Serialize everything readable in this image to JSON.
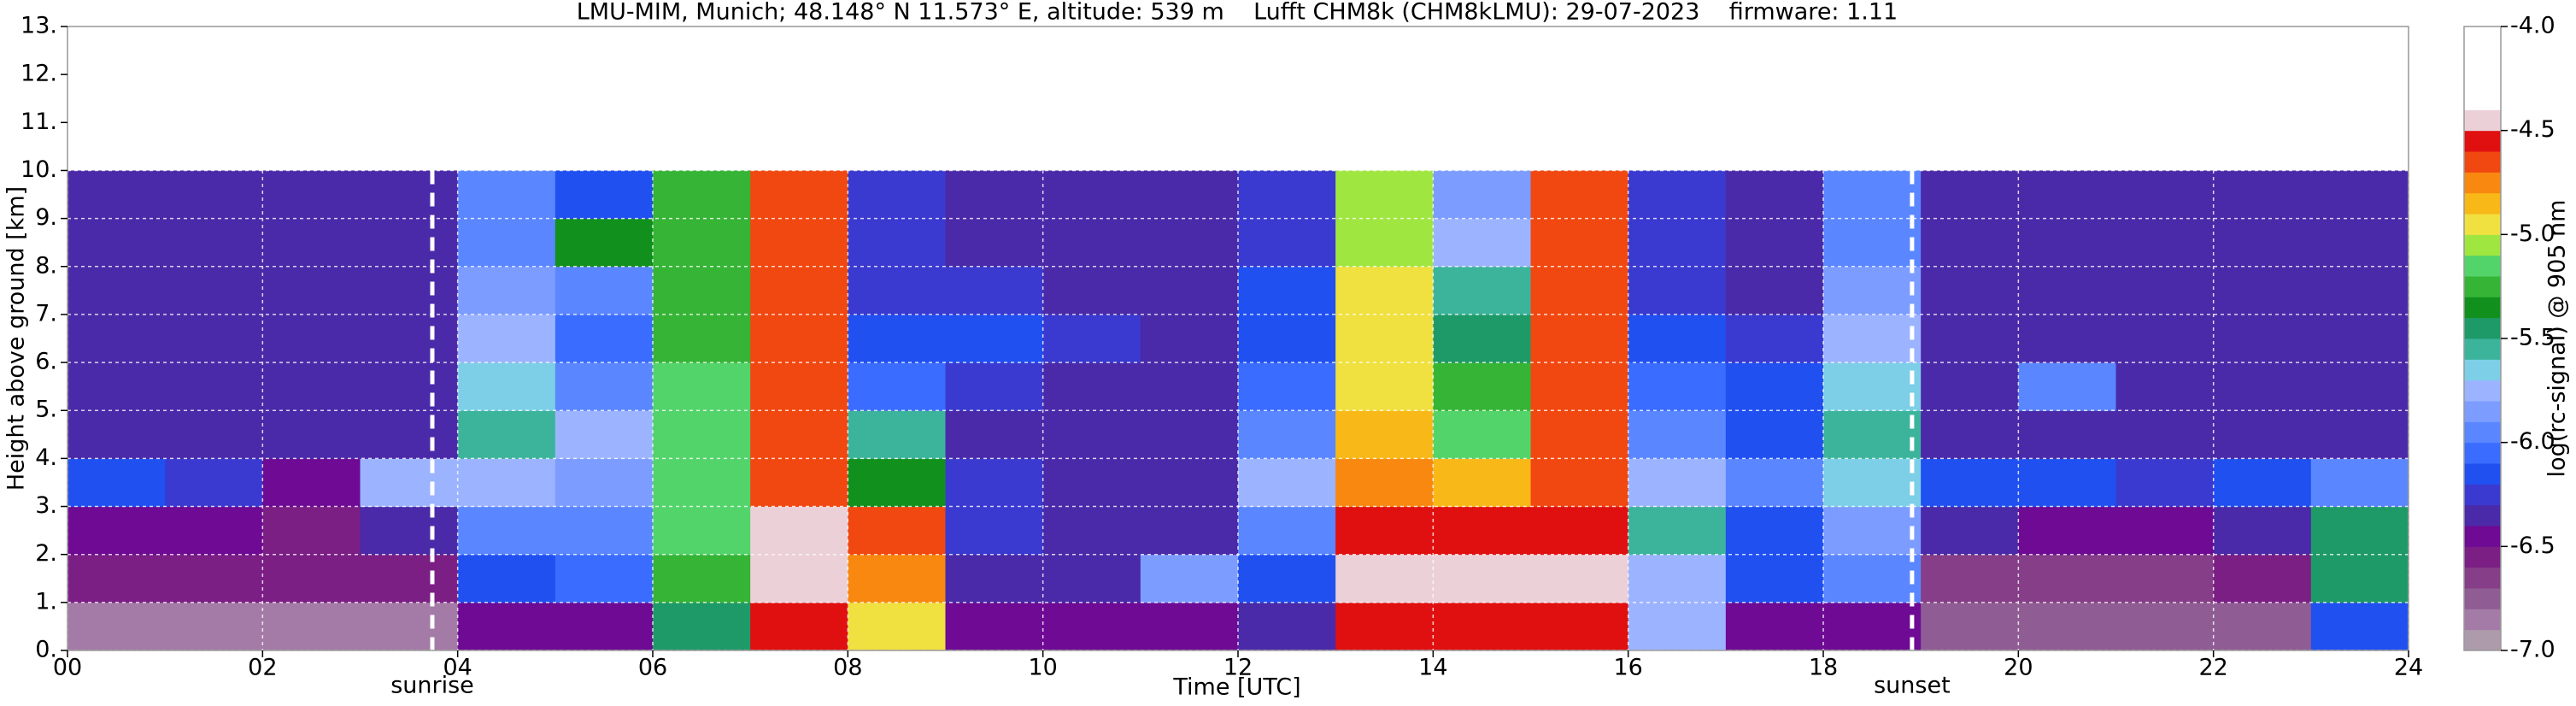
{
  "chart_data": {
    "type": "heatmap",
    "title": "LMU-MIM, Munich; 48.148° N 11.573° E, altitude: 539 m    Lufft CHM8k (CHM8kLMU): 29-07-2023    firmware: 1.11",
    "x_label": "Time [UTC]",
    "y_label": "Height above ground [km]",
    "xlim": [
      0,
      24
    ],
    "ylim": [
      0,
      13
    ],
    "xticks": [
      {
        "value": 0,
        "label": "00"
      },
      {
        "value": 2,
        "label": "02"
      },
      {
        "value": 4,
        "label": "04"
      },
      {
        "value": 6,
        "label": "06"
      },
      {
        "value": 8,
        "label": "08"
      },
      {
        "value": 10,
        "label": "10"
      },
      {
        "value": 12,
        "label": "12"
      },
      {
        "value": 14,
        "label": "14"
      },
      {
        "value": 16,
        "label": "16"
      },
      {
        "value": 18,
        "label": "18"
      },
      {
        "value": 20,
        "label": "20"
      },
      {
        "value": 22,
        "label": "22"
      },
      {
        "value": 24,
        "label": "24"
      }
    ],
    "yticks": [
      {
        "value": 0,
        "label": "0."
      },
      {
        "value": 1,
        "label": "1."
      },
      {
        "value": 2,
        "label": "2."
      },
      {
        "value": 3,
        "label": "3."
      },
      {
        "value": 4,
        "label": "4."
      },
      {
        "value": 5,
        "label": "5."
      },
      {
        "value": 6,
        "label": "6."
      },
      {
        "value": 7,
        "label": "7."
      },
      {
        "value": 8,
        "label": "8."
      },
      {
        "value": 9,
        "label": "9."
      },
      {
        "value": 10,
        "label": "10."
      },
      {
        "value": 11,
        "label": "11."
      },
      {
        "value": 12,
        "label": "12."
      },
      {
        "value": 13,
        "label": "13."
      }
    ],
    "grid": true,
    "x_bins": [
      0,
      1,
      2,
      3,
      4,
      5,
      6,
      7,
      8,
      9,
      10,
      11,
      12,
      13,
      14,
      15,
      16,
      17,
      18,
      19,
      20,
      21,
      22,
      23,
      24
    ],
    "y_bins": [
      0,
      1,
      2,
      3,
      4,
      5,
      6,
      7,
      8,
      9,
      10
    ],
    "values": [
      [
        -6.9,
        -6.9,
        -6.9,
        -6.9,
        -6.5,
        -6.5,
        -5.5,
        -4.6,
        -5.0,
        -6.5,
        -6.5,
        -6.5,
        -6.4,
        -4.6,
        -4.6,
        -4.6,
        -5.8,
        -6.5,
        -6.5,
        -6.8,
        -6.8,
        -6.8,
        -6.8,
        -6.2
      ],
      [
        -6.6,
        -6.6,
        -6.6,
        -6.6,
        -6.2,
        -6.1,
        -5.3,
        -4.5,
        -4.8,
        -6.4,
        -6.4,
        -5.9,
        -6.2,
        -4.5,
        -4.5,
        -4.5,
        -5.8,
        -6.2,
        -6.0,
        -6.7,
        -6.7,
        -6.7,
        -6.6,
        -5.5
      ],
      [
        -6.5,
        -6.5,
        -6.6,
        -6.4,
        -6.0,
        -6.0,
        -5.2,
        -4.5,
        -4.7,
        -6.3,
        -6.4,
        -6.4,
        -6.0,
        -4.6,
        -4.6,
        -4.6,
        -5.6,
        -6.2,
        -5.9,
        -6.4,
        -6.5,
        -6.5,
        -6.4,
        -5.5
      ],
      [
        -6.2,
        -6.3,
        -6.5,
        -5.8,
        -5.8,
        -5.9,
        -5.2,
        -4.7,
        -5.4,
        -6.3,
        -6.4,
        -6.4,
        -5.8,
        -4.8,
        -4.9,
        -4.7,
        -5.8,
        -6.0,
        -5.7,
        -6.2,
        -6.2,
        -6.3,
        -6.2,
        -6.0
      ],
      [
        -6.4,
        -6.4,
        -6.4,
        -6.4,
        -5.6,
        -5.8,
        -5.2,
        -4.7,
        -5.6,
        -6.4,
        -6.4,
        -6.4,
        -6.0,
        -4.9,
        -5.2,
        -4.7,
        -6.0,
        -6.2,
        -5.6,
        -6.4,
        -6.4,
        -6.4,
        -6.4,
        -6.4
      ],
      [
        -6.4,
        -6.4,
        -6.4,
        -6.4,
        -5.7,
        -6.0,
        -5.2,
        -4.7,
        -6.1,
        -6.3,
        -6.4,
        -6.4,
        -6.1,
        -5.0,
        -5.3,
        -4.7,
        -6.1,
        -6.2,
        -5.7,
        -6.4,
        -6.0,
        -6.4,
        -6.4,
        -6.4
      ],
      [
        -6.4,
        -6.4,
        -6.4,
        -6.4,
        -5.8,
        -6.1,
        -5.3,
        -4.7,
        -6.2,
        -6.2,
        -6.3,
        -6.4,
        -6.2,
        -5.0,
        -5.5,
        -4.7,
        -6.2,
        -6.3,
        -5.8,
        -6.4,
        -6.4,
        -6.4,
        -6.4,
        -6.4
      ],
      [
        -6.4,
        -6.4,
        -6.4,
        -6.4,
        -5.9,
        -6.0,
        -5.3,
        -4.7,
        -6.3,
        -6.3,
        -6.4,
        -6.4,
        -6.2,
        -5.0,
        -5.6,
        -4.7,
        -6.3,
        -6.4,
        -5.9,
        -6.4,
        -6.4,
        -6.4,
        -6.4,
        -6.4
      ],
      [
        -6.4,
        -6.4,
        -6.4,
        -6.4,
        -6.0,
        -5.4,
        -5.3,
        -4.7,
        -6.3,
        -6.4,
        -6.4,
        -6.4,
        -6.3,
        -5.1,
        -5.8,
        -4.7,
        -6.3,
        -6.4,
        -6.0,
        -6.4,
        -6.4,
        -6.4,
        -6.4,
        -6.4
      ],
      [
        -6.4,
        -6.4,
        -6.4,
        -6.4,
        -6.0,
        -6.2,
        -5.3,
        -4.7,
        -6.3,
        -6.4,
        -6.4,
        -6.4,
        -6.3,
        -5.1,
        -5.9,
        -4.7,
        -6.3,
        -6.4,
        -6.0,
        -6.4,
        -6.4,
        -6.4,
        -6.4,
        -6.4
      ]
    ],
    "annotations": [
      {
        "x": 3.74,
        "label": "sunrise"
      },
      {
        "x": 18.91,
        "label": "sunset"
      }
    ],
    "colorbar": {
      "label": "log(rc-signal) @ 905 nm",
      "lim": [
        -7,
        -4
      ],
      "ticks": [
        {
          "value": -7,
          "label": "-7.0"
        },
        {
          "value": -6.5,
          "label": "-6.5"
        },
        {
          "value": -6,
          "label": "-6.0"
        },
        {
          "value": -5.5,
          "label": "-5.5"
        },
        {
          "value": -5,
          "label": "-5.0"
        },
        {
          "value": -4.5,
          "label": "-4.5"
        },
        {
          "value": -4,
          "label": "-4.0"
        }
      ],
      "levels": [
        -7.0,
        -6.9,
        -6.8,
        -6.7,
        -6.6,
        -6.5,
        -6.4,
        -6.3,
        -6.2,
        -6.1,
        -6.0,
        -5.9,
        -5.8,
        -5.7,
        -5.6,
        -5.5,
        -5.4,
        -5.3,
        -5.2,
        -5.1,
        -5.0,
        -4.9,
        -4.8,
        -4.7,
        -4.6,
        -4.5,
        -4.4,
        -4.0
      ],
      "colors": [
        "#ad9aaa",
        "#a47ba6",
        "#8f5d94",
        "#853e87",
        "#7b1f85",
        "#6e0a94",
        "#4a2aa8",
        "#3a3ad0",
        "#2050f0",
        "#3a6cff",
        "#5a86ff",
        "#7c9cff",
        "#9cb4ff",
        "#7ccfe6",
        "#3cb49c",
        "#1e9a68",
        "#12901e",
        "#36b436",
        "#52d46a",
        "#a0e640",
        "#f0e040",
        "#f8b818",
        "#f88810",
        "#f04810",
        "#e01010",
        "#ecd0d8",
        "#ffffff"
      ]
    }
  }
}
